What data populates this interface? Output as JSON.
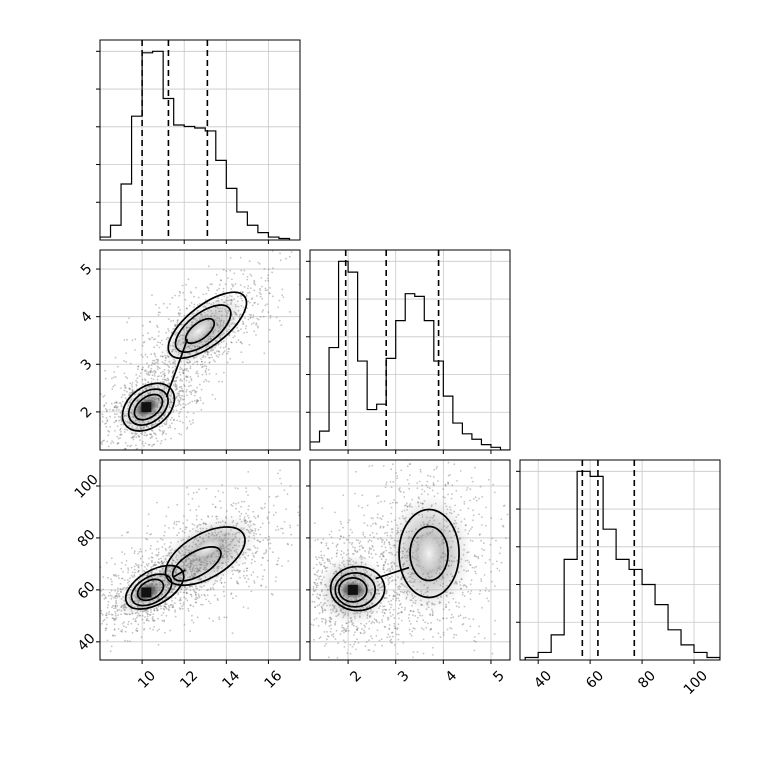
{
  "chart_data": {
    "type": "corner",
    "title": "",
    "parameters": [
      {
        "name": "",
        "range": [
          8.0,
          17.5
        ],
        "ticks": [
          10,
          12,
          14,
          16
        ],
        "quantiles": [
          10.0,
          11.25,
          13.1
        ]
      },
      {
        "name": "",
        "range": [
          1.2,
          5.4
        ],
        "ticks": [
          2,
          3,
          4,
          5
        ],
        "quantiles": [
          1.95,
          2.8,
          3.9
        ]
      },
      {
        "name": "",
        "range": [
          33,
          110
        ],
        "ticks": [
          40,
          60,
          80,
          100
        ],
        "quantiles": [
          57.0,
          63.0,
          77.0
        ]
      }
    ],
    "histograms": [
      {
        "parameter": 0,
        "bin_edges": [
          8.0,
          8.5,
          9.0,
          9.5,
          10.0,
          10.5,
          11.0,
          11.5,
          12.0,
          12.5,
          13.0,
          13.5,
          14.0,
          14.5,
          15.0,
          15.5,
          16.0,
          16.5,
          17.0
        ],
        "counts": [
          2,
          10,
          38,
          84,
          127,
          128,
          96,
          78,
          77,
          76,
          74,
          54,
          35,
          19,
          10,
          5,
          2,
          1
        ]
      },
      {
        "parameter": 1,
        "bin_edges": [
          1.2,
          1.4,
          1.6,
          1.8,
          2.0,
          2.2,
          2.4,
          2.6,
          2.8,
          3.0,
          3.2,
          3.4,
          3.6,
          3.8,
          4.0,
          4.2,
          4.4,
          4.6,
          4.8,
          5.0,
          5.2,
          5.4
        ],
        "counts": [
          3,
          7,
          38,
          70,
          66,
          33,
          15,
          17,
          34,
          48,
          58,
          57,
          48,
          33,
          20,
          10,
          6,
          4,
          2,
          1,
          0
        ]
      },
      {
        "parameter": 2,
        "bin_edges": [
          35,
          40,
          45,
          50,
          55,
          60,
          65,
          70,
          75,
          80,
          85,
          90,
          95,
          100,
          105,
          110
        ],
        "counts": [
          1,
          3,
          10,
          40,
          75,
          73,
          52,
          40,
          36,
          30,
          22,
          12,
          6,
          3,
          1
        ]
      }
    ],
    "pairs": [
      {
        "x_parameter": 0,
        "y_parameter": 1,
        "modes": [
          {
            "x": 10.2,
            "y": 2.1
          },
          {
            "x": 12.7,
            "y": 3.7
          }
        ]
      },
      {
        "x_parameter": 0,
        "y_parameter": 2,
        "modes": [
          {
            "x": 10.2,
            "y": 59
          },
          {
            "x": 13.1,
            "y": 76
          }
        ]
      },
      {
        "x_parameter": 1,
        "y_parameter": 2,
        "modes": [
          {
            "x": 2.1,
            "y": 60
          },
          {
            "x": 3.7,
            "y": 74
          }
        ]
      }
    ],
    "grid": true,
    "legend": "none"
  }
}
